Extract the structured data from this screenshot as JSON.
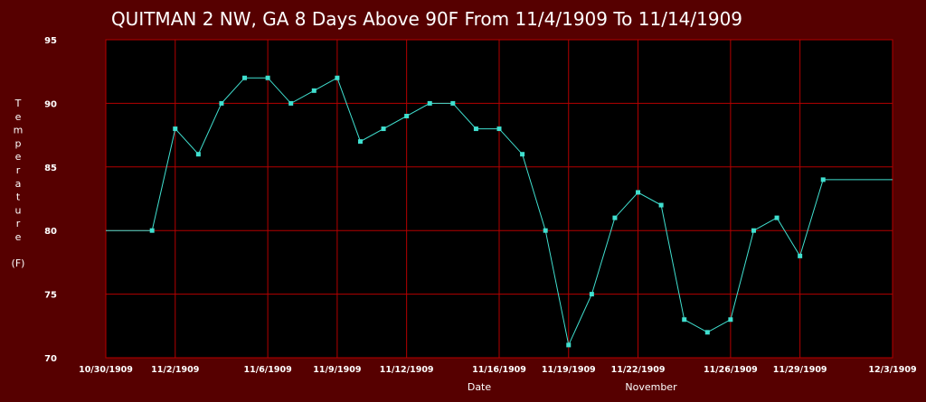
{
  "colors": {
    "page_background": "#560000",
    "plot_background": "#000000",
    "grid": "#b40000",
    "series": "#40e0d0",
    "text": "#ffffff"
  },
  "chart_data": {
    "type": "line",
    "title": "QUITMAN 2 NW, GA  8 Days Above 90F From 11/4/1909 To 11/14/1909",
    "xlabel": "Date",
    "xlabel_secondary": "November",
    "ylabel": "Temperature",
    "ylabel_unit": "(F)",
    "ylim": [
      70,
      95
    ],
    "xlim": [
      "10/30/1909",
      "12/3/1909"
    ],
    "grid": true,
    "y_ticks": [
      "95",
      "90",
      "85",
      "80",
      "75",
      "70"
    ],
    "x_ticks": [
      "10/30/1909",
      "11/2/1909",
      "11/6/1909",
      "11/9/1909",
      "11/12/1909",
      "11/16/1909",
      "11/19/1909",
      "11/22/1909",
      "11/26/1909",
      "11/29/1909",
      "12/3/1909"
    ],
    "series": [
      {
        "x": [
          "10/30/1909",
          "11/1/1909",
          "11/2/1909",
          "11/3/1909",
          "11/4/1909",
          "11/5/1909",
          "11/6/1909",
          "11/7/1909",
          "11/8/1909",
          "11/9/1909",
          "11/10/1909",
          "11/11/1909",
          "11/12/1909",
          "11/13/1909",
          "11/14/1909",
          "11/15/1909",
          "11/16/1909",
          "11/17/1909",
          "11/18/1909",
          "11/19/1909",
          "11/20/1909",
          "11/21/1909",
          "11/22/1909",
          "11/23/1909",
          "11/24/1909",
          "11/25/1909",
          "11/26/1909",
          "11/27/1909",
          "11/28/1909",
          "11/29/1909",
          "11/30/1909",
          "12/3/1909"
        ],
        "values": [
          80,
          80,
          88,
          86,
          90,
          92,
          92,
          90,
          91,
          92,
          87,
          88,
          89,
          90,
          90,
          88,
          88,
          86,
          80,
          71,
          75,
          81,
          83,
          82,
          73,
          72,
          73,
          80,
          81,
          78,
          84,
          84
        ],
        "markers": [
          false,
          true,
          true,
          true,
          true,
          true,
          true,
          true,
          true,
          true,
          true,
          true,
          true,
          true,
          true,
          true,
          true,
          true,
          true,
          true,
          true,
          true,
          true,
          true,
          true,
          true,
          true,
          true,
          true,
          true,
          true,
          false
        ]
      }
    ]
  }
}
